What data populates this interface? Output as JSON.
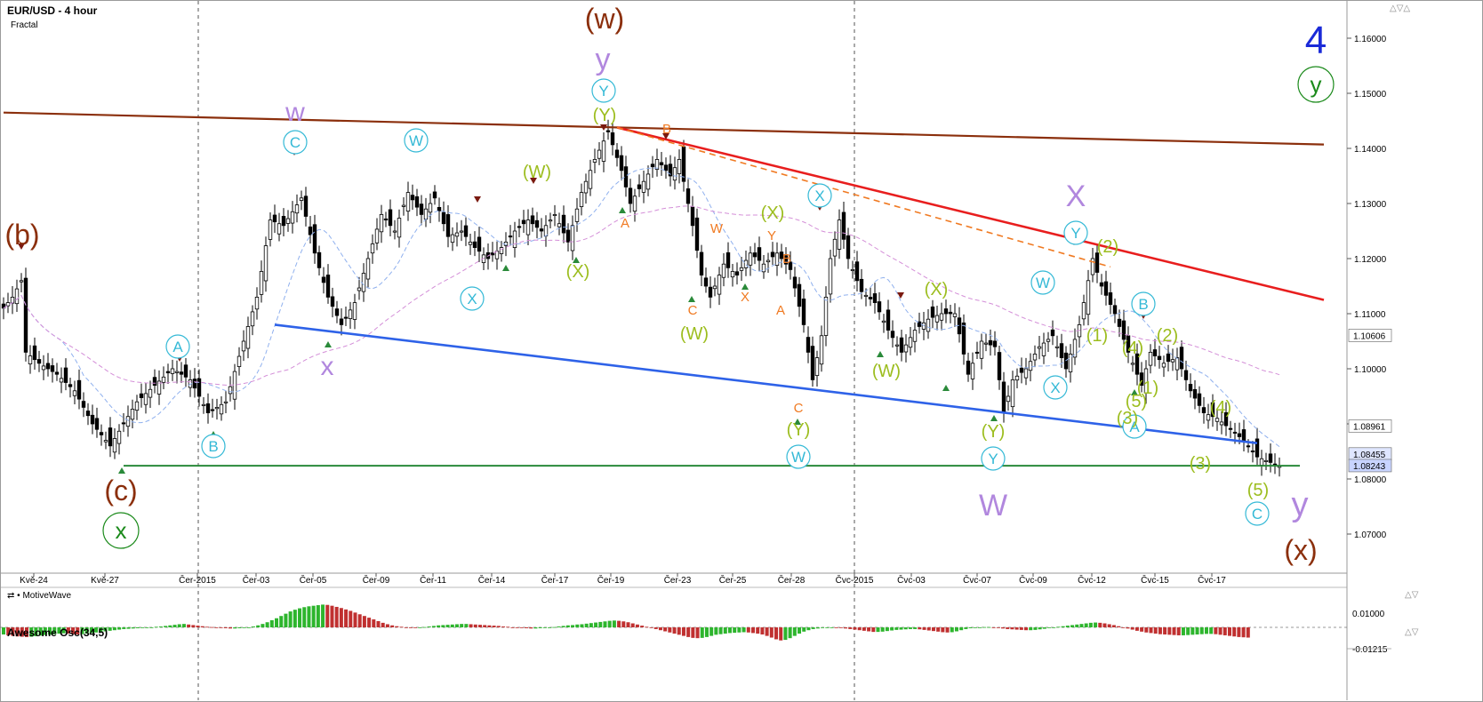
{
  "header": {
    "symbol_timeframe": "EUR/USD - 4 hour",
    "indicator": "Fractal"
  },
  "footer": {
    "brand": "MotiveWave"
  },
  "oscillator": {
    "label": "Awesome Osc(34,5)",
    "axis_labels": [
      "0.01000",
      "-0.01215"
    ],
    "values": [
      -0.0025,
      -0.0028,
      -0.003,
      -0.0032,
      -0.0033,
      -0.0034,
      -0.0033,
      -0.0031,
      -0.0029,
      -0.0027,
      -0.0026,
      -0.0024,
      -0.0022,
      -0.0021,
      -0.0022,
      -0.0024,
      -0.0025,
      -0.0024,
      -0.0022,
      -0.002,
      -0.0018,
      -0.0016,
      -0.0014,
      -0.0012,
      -0.001,
      -0.0008,
      -0.0006,
      -0.0005,
      -0.0004,
      -0.0003,
      -0.0002,
      -0.0001,
      0.0,
      0.0002,
      0.0003,
      0.0005,
      0.0007,
      0.0009,
      0.0011,
      0.0012,
      0.001,
      0.0008,
      0.0006,
      0.0004,
      0.0002,
      0.0001,
      -0.0001,
      -0.0002,
      -0.0003,
      -0.0004,
      -0.0004,
      -0.0003,
      -0.0002,
      0.0,
      0.0003,
      0.0007,
      0.0012,
      0.0018,
      0.0025,
      0.0032,
      0.004,
      0.0048,
      0.0056,
      0.0062,
      0.0067,
      0.0071,
      0.0074,
      0.0076,
      0.0078,
      0.008,
      0.0079,
      0.0076,
      0.0072,
      0.0068,
      0.0063,
      0.0058,
      0.0052,
      0.0046,
      0.004,
      0.0034,
      0.0028,
      0.0022,
      0.0016,
      0.0011,
      0.0007,
      0.0004,
      0.0002,
      0.0,
      -0.0001,
      -0.0002,
      -0.0001,
      0.0001,
      0.0003,
      0.0005,
      0.0007,
      0.0008,
      0.0009,
      0.001,
      0.0011,
      0.0012,
      0.0012,
      0.0011,
      0.001,
      0.0009,
      0.0008,
      0.0007,
      0.0006,
      0.0005,
      0.0003,
      0.0002,
      0.0,
      -0.0001,
      -0.0002,
      -0.0003,
      -0.0004,
      -0.0004,
      -0.0003,
      -0.0002,
      -0.0001,
      0.0001,
      0.0003,
      0.0005,
      0.0007,
      0.0008,
      0.001,
      0.0011,
      0.0013,
      0.0015,
      0.0017,
      0.0019,
      0.0021,
      0.0023,
      0.0024,
      0.0023,
      0.0021,
      0.0018,
      0.0014,
      0.001,
      0.0006,
      0.0002,
      -0.0002,
      -0.0006,
      -0.001,
      -0.0014,
      -0.0018,
      -0.0022,
      -0.0026,
      -0.003,
      -0.0034,
      -0.0037,
      -0.0038,
      -0.0037,
      -0.0034,
      -0.003,
      -0.0026,
      -0.0024,
      -0.0022,
      -0.002,
      -0.0019,
      -0.0018,
      -0.0017,
      -0.0018,
      -0.002,
      -0.0022,
      -0.0025,
      -0.003,
      -0.0036,
      -0.0042,
      -0.0046,
      -0.0044,
      -0.0038,
      -0.003,
      -0.0022,
      -0.0015,
      -0.001,
      -0.0006,
      -0.0004,
      -0.0002,
      -0.0001,
      0.0,
      -0.0001,
      -0.0002,
      -0.0004,
      -0.0006,
      -0.0008,
      -0.001,
      -0.0012,
      -0.0014,
      -0.0016,
      -0.0016,
      -0.0015,
      -0.0013,
      -0.0011,
      -0.0009,
      -0.0008,
      -0.0007,
      -0.0006,
      -0.0006,
      -0.0007,
      -0.0009,
      -0.0011,
      -0.0013,
      -0.0015,
      -0.0017,
      -0.0018,
      -0.0017,
      -0.0014,
      -0.001,
      -0.0006,
      -0.0003,
      -0.0001,
      0.0,
      0.0001,
      0.0001,
      0.0,
      -0.0002,
      -0.0004,
      -0.0006,
      -0.0007,
      -0.0008,
      -0.0009,
      -0.001,
      -0.001,
      -0.0009,
      -0.0007,
      -0.0005,
      -0.0002,
      0.0,
      0.0002,
      0.0004,
      0.0006,
      0.0008,
      0.001,
      0.0012,
      0.0014,
      0.0016,
      0.0017,
      0.0016,
      0.0014,
      0.0011,
      0.0008,
      0.0004,
      0.0,
      -0.0004,
      -0.0008,
      -0.0012,
      -0.0015,
      -0.0018,
      -0.002,
      -0.0022,
      -0.0024,
      -0.0025,
      -0.0026,
      -0.0027,
      -0.0028,
      -0.0028,
      -0.0027,
      -0.0026,
      -0.0025,
      -0.0024,
      -0.0023,
      -0.0023,
      -0.0024,
      -0.0026,
      -0.0028,
      -0.003,
      -0.0032,
      -0.0034,
      -0.0035,
      -0.0036
    ]
  },
  "price_labels": [
    "1.10606",
    "1.08961",
    "1.08455",
    "1.08243"
  ],
  "wave_labels": {
    "brown_w": "(w)",
    "brown_b": "(b)",
    "brown_c": "(c)",
    "brown_x": "(x)",
    "green_x": "x",
    "green_y": "y",
    "blue_4": "4",
    "purple_w1": "w",
    "purple_x": "x",
    "purple_y1": "y",
    "purple_X": "X",
    "purple_W": "W",
    "purple_y2": "y",
    "cyan_A1": "A",
    "cyan_B1": "B",
    "cyan_C": "C",
    "cyan_W1": "W",
    "cyan_X1": "X",
    "cyan_Y1": "Y",
    "cyan_X2": "X",
    "cyan_W2": "W",
    "cyan_Y2": "Y",
    "cyan_W3": "W",
    "cyan_X3": "X",
    "cyan_Y3": "Y",
    "cyan_B2": "B",
    "cyan_A2": "A",
    "cyan_C2": "C",
    "lg_Y1": "(Y)",
    "lg_W1": "(W)",
    "lg_X1": "(X)",
    "lg_X2": "(X)",
    "lg_W2": "(W)",
    "lg_Y2": "(Y)",
    "lg_X3": "(X)",
    "lg_W3": "(W)",
    "lg_Y3": "(Y)",
    "lg_2a": "(2)",
    "lg_1a": "(1)",
    "lg_4a": "(4)",
    "lg_3a": "(3)",
    "lg_5a": "(5)",
    "lg_1b": "(1)",
    "lg_2b": "(2)",
    "lg_4b": "(4)",
    "lg_3b": "(3)",
    "lg_5b": "(5)",
    "or_B1": "B",
    "or_A1": "A",
    "or_W": "W",
    "or_Y": "Y",
    "or_X": "X",
    "or_B2": "B",
    "or_A2": "A",
    "or_C": "C",
    "or_C2": "C"
  },
  "chart_data": {
    "type": "candlestick",
    "title": "EUR/USD - 4 hour",
    "y_axis": {
      "ticks": [
        1.16,
        1.15,
        1.14,
        1.13,
        1.12,
        1.11,
        1.1,
        1.09,
        1.08,
        1.07
      ],
      "range": [
        1.063,
        1.1665
      ]
    },
    "x_tick_labels": [
      "Kvě-24",
      "Kvě-27",
      "Čer-2015",
      "Čer-03",
      "Čer-05",
      "Čer-09",
      "Čer-11",
      "Čer-14",
      "Čer-17",
      "Čer-19",
      "Čer-23",
      "Čer-25",
      "Čer-28",
      "Čvc-2015",
      "Čvc-03",
      "Čvc-07",
      "Čvc-09",
      "Čvc-12",
      "Čvc-15",
      "Čvc-17"
    ],
    "close_path": [
      {
        "bar": 0,
        "close": 1.111
      },
      {
        "bar": 2,
        "close": 1.113
      },
      {
        "bar": 4,
        "close": 1.116
      },
      {
        "bar": 5,
        "close": 1.103
      },
      {
        "bar": 8,
        "close": 1.101
      },
      {
        "bar": 12,
        "close": 1.099
      },
      {
        "bar": 16,
        "close": 1.096
      },
      {
        "bar": 20,
        "close": 1.09
      },
      {
        "bar": 24,
        "close": 1.086
      },
      {
        "bar": 27,
        "close": 1.09
      },
      {
        "bar": 30,
        "close": 1.094
      },
      {
        "bar": 34,
        "close": 1.097
      },
      {
        "bar": 38,
        "close": 1.1
      },
      {
        "bar": 42,
        "close": 1.098
      },
      {
        "bar": 46,
        "close": 1.092
      },
      {
        "bar": 50,
        "close": 1.094
      },
      {
        "bar": 54,
        "close": 1.105
      },
      {
        "bar": 57,
        "close": 1.113
      },
      {
        "bar": 60,
        "close": 1.127
      },
      {
        "bar": 63,
        "close": 1.126
      },
      {
        "bar": 67,
        "close": 1.131
      },
      {
        "bar": 70,
        "close": 1.121
      },
      {
        "bar": 73,
        "close": 1.113
      },
      {
        "bar": 76,
        "close": 1.108
      },
      {
        "bar": 79,
        "close": 1.112
      },
      {
        "bar": 82,
        "close": 1.12
      },
      {
        "bar": 85,
        "close": 1.128
      },
      {
        "bar": 88,
        "close": 1.125
      },
      {
        "bar": 91,
        "close": 1.132
      },
      {
        "bar": 94,
        "close": 1.128
      },
      {
        "bar": 97,
        "close": 1.131
      },
      {
        "bar": 100,
        "close": 1.124
      },
      {
        "bar": 103,
        "close": 1.125
      },
      {
        "bar": 106,
        "close": 1.122
      },
      {
        "bar": 109,
        "close": 1.12
      },
      {
        "bar": 112,
        "close": 1.122
      },
      {
        "bar": 115,
        "close": 1.125
      },
      {
        "bar": 118,
        "close": 1.127
      },
      {
        "bar": 121,
        "close": 1.125
      },
      {
        "bar": 124,
        "close": 1.128
      },
      {
        "bar": 127,
        "close": 1.123
      },
      {
        "bar": 130,
        "close": 1.132
      },
      {
        "bar": 133,
        "close": 1.138
      },
      {
        "bar": 136,
        "close": 1.143
      },
      {
        "bar": 139,
        "close": 1.136
      },
      {
        "bar": 141,
        "close": 1.13
      },
      {
        "bar": 144,
        "close": 1.134
      },
      {
        "bar": 147,
        "close": 1.138
      },
      {
        "bar": 150,
        "close": 1.135
      },
      {
        "bar": 152,
        "close": 1.138
      },
      {
        "bar": 155,
        "close": 1.126
      },
      {
        "bar": 157,
        "close": 1.117
      },
      {
        "bar": 159,
        "close": 1.113
      },
      {
        "bar": 162,
        "close": 1.119
      },
      {
        "bar": 165,
        "close": 1.117
      },
      {
        "bar": 168,
        "close": 1.121
      },
      {
        "bar": 171,
        "close": 1.119
      },
      {
        "bar": 174,
        "close": 1.121
      },
      {
        "bar": 177,
        "close": 1.118
      },
      {
        "bar": 180,
        "close": 1.108
      },
      {
        "bar": 182,
        "close": 1.098
      },
      {
        "bar": 184,
        "close": 1.106
      },
      {
        "bar": 186,
        "close": 1.12
      },
      {
        "bar": 188,
        "close": 1.127
      },
      {
        "bar": 190,
        "close": 1.12
      },
      {
        "bar": 193,
        "close": 1.114
      },
      {
        "bar": 196,
        "close": 1.112
      },
      {
        "bar": 199,
        "close": 1.107
      },
      {
        "bar": 202,
        "close": 1.103
      },
      {
        "bar": 205,
        "close": 1.107
      },
      {
        "bar": 208,
        "close": 1.109
      },
      {
        "bar": 211,
        "close": 1.11
      },
      {
        "bar": 214,
        "close": 1.11
      },
      {
        "bar": 217,
        "close": 1.099
      },
      {
        "bar": 220,
        "close": 1.105
      },
      {
        "bar": 223,
        "close": 1.104
      },
      {
        "bar": 225,
        "close": 1.092
      },
      {
        "bar": 227,
        "close": 1.098
      },
      {
        "bar": 230,
        "close": 1.1
      },
      {
        "bar": 233,
        "close": 1.104
      },
      {
        "bar": 236,
        "close": 1.106
      },
      {
        "bar": 239,
        "close": 1.1
      },
      {
        "bar": 242,
        "close": 1.108
      },
      {
        "bar": 245,
        "close": 1.12
      },
      {
        "bar": 247,
        "close": 1.115
      },
      {
        "bar": 250,
        "close": 1.11
      },
      {
        "bar": 253,
        "close": 1.103
      },
      {
        "bar": 256,
        "close": 1.097
      },
      {
        "bar": 258,
        "close": 1.103
      },
      {
        "bar": 261,
        "close": 1.101
      },
      {
        "bar": 264,
        "close": 1.102
      },
      {
        "bar": 267,
        "close": 1.096
      },
      {
        "bar": 270,
        "close": 1.092
      },
      {
        "bar": 273,
        "close": 1.091
      },
      {
        "bar": 276,
        "close": 1.089
      },
      {
        "bar": 279,
        "close": 1.087
      },
      {
        "bar": 282,
        "close": 1.084
      },
      {
        "bar": 285,
        "close": 1.083
      },
      {
        "bar": 287,
        "close": 1.0824
      }
    ],
    "horizontal_line": 1.0824,
    "trendlines": [
      {
        "color": "brown",
        "from": {
          "bar": 0,
          "price": 1.1465
        },
        "to": {
          "bar": 297,
          "price": 1.1407
        }
      },
      {
        "color": "red",
        "from": {
          "bar": 138,
          "price": 1.1438
        },
        "to": {
          "bar": 297,
          "price": 1.1125
        }
      },
      {
        "color": "blue",
        "from": {
          "bar": 61,
          "price": 1.108
        },
        "to": {
          "bar": 282,
          "price": 1.0865
        }
      },
      {
        "color": "orange-dashed",
        "from": {
          "bar": 138,
          "price": 1.1438
        },
        "to": {
          "bar": 249,
          "price": 1.1185
        }
      }
    ]
  }
}
